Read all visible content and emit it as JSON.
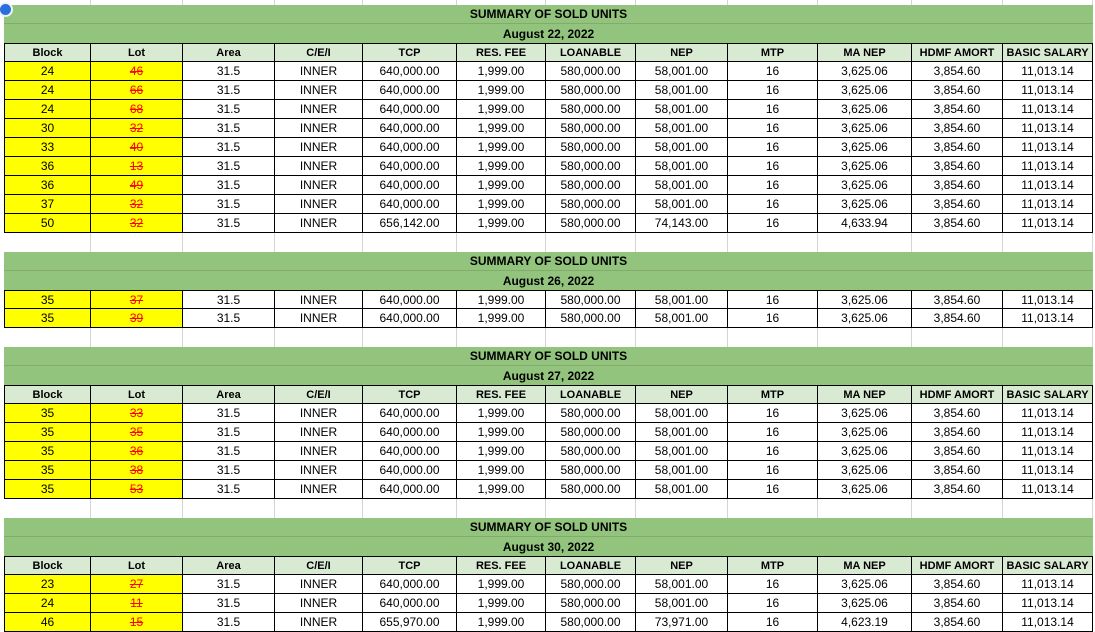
{
  "title": "SUMMARY OF SOLD UNITS",
  "columns": [
    "Block",
    "Lot",
    "Area",
    "C/E/I",
    "TCP",
    "RES. FEE",
    "LOANABLE",
    "NEP",
    "MTP",
    "MA NEP",
    "HDMF AMORT",
    "BASIC SALARY"
  ],
  "colors": {
    "band-green": "#93c47d",
    "header-green": "#d9ead3",
    "highlight-yellow": "#ffff00",
    "struck-red": "#ff0000",
    "grid-black": "#000000",
    "gridline-gray": "#d4d4d4",
    "presence-blue": "#2a6fdb"
  },
  "sections": [
    {
      "date": "August 22, 2022",
      "show_column_headers": true,
      "rows": [
        [
          "24",
          "46",
          "31.5",
          "INNER",
          "640,000.00",
          "1,999.00",
          "580,000.00",
          "58,001.00",
          "16",
          "3,625.06",
          "3,854.60",
          "11,013.14"
        ],
        [
          "24",
          "66",
          "31.5",
          "INNER",
          "640,000.00",
          "1,999.00",
          "580,000.00",
          "58,001.00",
          "16",
          "3,625.06",
          "3,854.60",
          "11,013.14"
        ],
        [
          "24",
          "68",
          "31.5",
          "INNER",
          "640,000.00",
          "1,999.00",
          "580,000.00",
          "58,001.00",
          "16",
          "3,625.06",
          "3,854.60",
          "11,013.14"
        ],
        [
          "30",
          "32",
          "31.5",
          "INNER",
          "640,000.00",
          "1,999.00",
          "580,000.00",
          "58,001.00",
          "16",
          "3,625.06",
          "3,854.60",
          "11,013.14"
        ],
        [
          "33",
          "40",
          "31.5",
          "INNER",
          "640,000.00",
          "1,999.00",
          "580,000.00",
          "58,001.00",
          "16",
          "3,625.06",
          "3,854.60",
          "11,013.14"
        ],
        [
          "36",
          "13",
          "31.5",
          "INNER",
          "640,000.00",
          "1,999.00",
          "580,000.00",
          "58,001.00",
          "16",
          "3,625.06",
          "3,854.60",
          "11,013.14"
        ],
        [
          "36",
          "49",
          "31.5",
          "INNER",
          "640,000.00",
          "1,999.00",
          "580,000.00",
          "58,001.00",
          "16",
          "3,625.06",
          "3,854.60",
          "11,013.14"
        ],
        [
          "37",
          "32",
          "31.5",
          "INNER",
          "640,000.00",
          "1,999.00",
          "580,000.00",
          "58,001.00",
          "16",
          "3,625.06",
          "3,854.60",
          "11,013.14"
        ],
        [
          "50",
          "32",
          "31.5",
          "INNER",
          "656,142.00",
          "1,999.00",
          "580,000.00",
          "74,143.00",
          "16",
          "4,633.94",
          "3,854.60",
          "11,013.14"
        ]
      ]
    },
    {
      "date": "August 26, 2022",
      "show_column_headers": false,
      "rows": [
        [
          "35",
          "37",
          "31.5",
          "INNER",
          "640,000.00",
          "1,999.00",
          "580,000.00",
          "58,001.00",
          "16",
          "3,625.06",
          "3,854.60",
          "11,013.14"
        ],
        [
          "35",
          "39",
          "31.5",
          "INNER",
          "640,000.00",
          "1,999.00",
          "580,000.00",
          "58,001.00",
          "16",
          "3,625.06",
          "3,854.60",
          "11,013.14"
        ]
      ]
    },
    {
      "date": "August 27, 2022",
      "show_column_headers": true,
      "rows": [
        [
          "35",
          "33",
          "31.5",
          "INNER",
          "640,000.00",
          "1,999.00",
          "580,000.00",
          "58,001.00",
          "16",
          "3,625.06",
          "3,854.60",
          "11,013.14"
        ],
        [
          "35",
          "35",
          "31.5",
          "INNER",
          "640,000.00",
          "1,999.00",
          "580,000.00",
          "58,001.00",
          "16",
          "3,625.06",
          "3,854.60",
          "11,013.14"
        ],
        [
          "35",
          "36",
          "31.5",
          "INNER",
          "640,000.00",
          "1,999.00",
          "580,000.00",
          "58,001.00",
          "16",
          "3,625.06",
          "3,854.60",
          "11,013.14"
        ],
        [
          "35",
          "38",
          "31.5",
          "INNER",
          "640,000.00",
          "1,999.00",
          "580,000.00",
          "58,001.00",
          "16",
          "3,625.06",
          "3,854.60",
          "11,013.14"
        ],
        [
          "35",
          "53",
          "31.5",
          "INNER",
          "640,000.00",
          "1,999.00",
          "580,000.00",
          "58,001.00",
          "16",
          "3,625.06",
          "3,854.60",
          "11,013.14"
        ]
      ]
    },
    {
      "date": "August 30, 2022",
      "show_column_headers": true,
      "rows": [
        [
          "23",
          "27",
          "31.5",
          "INNER",
          "640,000.00",
          "1,999.00",
          "580,000.00",
          "58,001.00",
          "16",
          "3,625.06",
          "3,854.60",
          "11,013.14"
        ],
        [
          "24",
          "11",
          "31.5",
          "INNER",
          "640,000.00",
          "1,999.00",
          "580,000.00",
          "58,001.00",
          "16",
          "3,625.06",
          "3,854.60",
          "11,013.14"
        ],
        [
          "46",
          "15",
          "31.5",
          "INNER",
          "655,970.00",
          "1,999.00",
          "580,000.00",
          "73,971.00",
          "16",
          "4,623.19",
          "3,854.60",
          "11,013.14"
        ]
      ]
    }
  ]
}
